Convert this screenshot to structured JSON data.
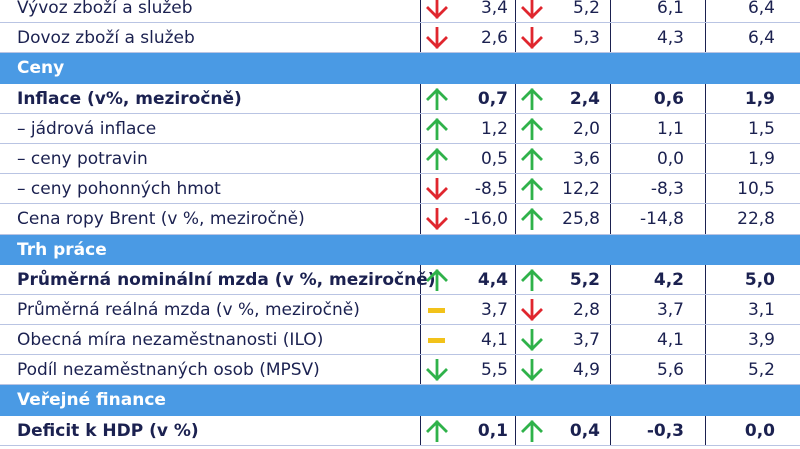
{
  "colors": {
    "section": "#4a9ae4",
    "text": "#1b2150",
    "up": "#2fb24a",
    "down": "#e0262e",
    "flat": "#f2c21a"
  },
  "rows": [
    {
      "type": "data",
      "label": "Vývoz zboží a služeb",
      "bold": false,
      "i1": "down-arrow",
      "v1": "3,4",
      "i2": "down-arrow",
      "v2": "5,2",
      "v3": "6,1",
      "v4": "6,4"
    },
    {
      "type": "data",
      "label": "Dovoz zboží a služeb",
      "bold": false,
      "i1": "down-arrow",
      "v1": "2,6",
      "i2": "down-arrow",
      "v2": "5,3",
      "v3": "4,3",
      "v4": "6,4"
    },
    {
      "type": "section",
      "label": "Ceny"
    },
    {
      "type": "data",
      "label": "Inflace (v%, meziročně)",
      "bold": true,
      "i1": "up-arrow",
      "v1": "0,7",
      "i2": "up-arrow",
      "v2": "2,4",
      "v3": "0,6",
      "v4": "1,9"
    },
    {
      "type": "data",
      "label": "– jádrová inflace",
      "bold": false,
      "i1": "up-arrow",
      "v1": "1,2",
      "i2": "up-arrow",
      "v2": "2,0",
      "v3": "1,1",
      "v4": "1,5"
    },
    {
      "type": "data",
      "label": "– ceny potravin",
      "bold": false,
      "i1": "up-arrow",
      "v1": "0,5",
      "i2": "up-arrow",
      "v2": "3,6",
      "v3": "0,0",
      "v4": "1,9"
    },
    {
      "type": "data",
      "label": "– ceny pohonných hmot",
      "bold": false,
      "i1": "down-arrow",
      "v1": "-8,5",
      "i2": "up-arrow",
      "v2": "12,2",
      "v3": "-8,3",
      "v4": "10,5"
    },
    {
      "type": "data",
      "label": "Cena ropy Brent (v %, meziročně)",
      "bold": false,
      "i1": "down-arrow",
      "v1": "-16,0",
      "i2": "up-arrow",
      "v2": "25,8",
      "v3": "-14,8",
      "v4": "22,8"
    },
    {
      "type": "section",
      "label": "Trh práce"
    },
    {
      "type": "data",
      "label": "Průměrná nominální mzda (v %, meziročně)",
      "bold": true,
      "i1": "up-arrow",
      "v1": "4,4",
      "i2": "up-arrow",
      "v2": "5,2",
      "v3": "4,2",
      "v4": "5,0"
    },
    {
      "type": "data",
      "label": "Průměrná reálná mzda (v %, meziročně)",
      "bold": false,
      "i1": "flat-dash",
      "v1": "3,7",
      "i2": "down-arrow",
      "v2": "2,8",
      "v3": "3,7",
      "v4": "3,1"
    },
    {
      "type": "data",
      "label": "Obecná míra nezaměstnanosti (ILO)",
      "bold": false,
      "i1": "flat-dash",
      "v1": "4,1",
      "i2": "down-green-arrow",
      "v2": "3,7",
      "v3": "4,1",
      "v4": "3,9"
    },
    {
      "type": "data",
      "label": "Podíl nezaměstnaných osob (MPSV)",
      "bold": false,
      "i1": "down-green-arrow",
      "v1": "5,5",
      "i2": "down-green-arrow",
      "v2": "4,9",
      "v3": "5,6",
      "v4": "5,2"
    },
    {
      "type": "section",
      "label": "Veřejné finance"
    },
    {
      "type": "data",
      "label": "Deficit k HDP (v %)",
      "bold": true,
      "i1": "up-arrow",
      "v1": "0,1",
      "i2": "up-arrow",
      "v2": "0,4",
      "v3": "-0,3",
      "v4": "0,0"
    }
  ]
}
